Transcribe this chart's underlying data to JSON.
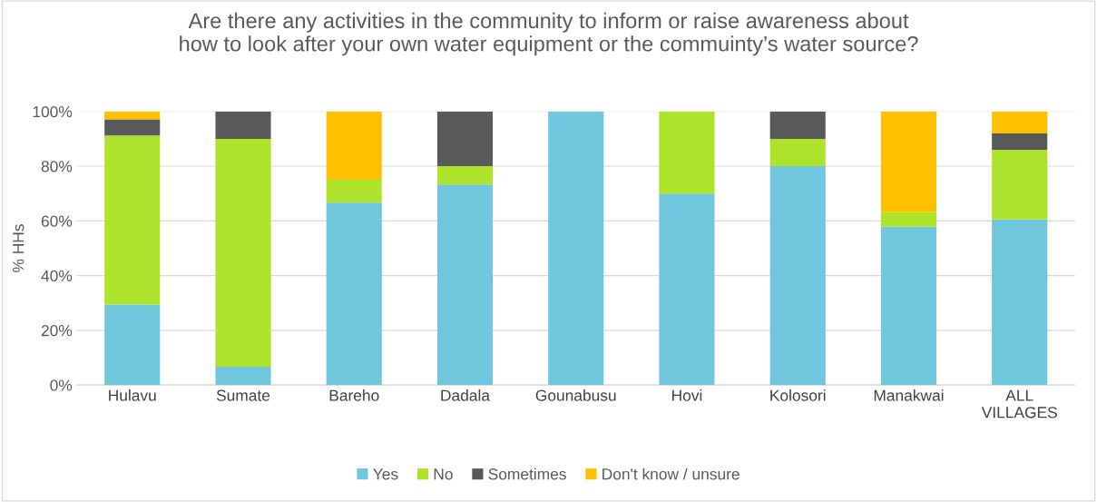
{
  "chart_data": {
    "type": "bar",
    "stacked": true,
    "title": "Are there any activities in the community to inform or raise awareness about\nhow to look after your own water equipment or the commuinty’s water source?",
    "ylabel": "% HHs",
    "categories": [
      "Hulavu",
      "Sumate",
      "Bareho",
      "Dadala",
      "Gounabusu",
      "Hovi",
      "Kolosori",
      "Manakwai",
      "ALL\nVILLAGES"
    ],
    "series": [
      {
        "name": "Yes",
        "color": "#70c6dd",
        "values": [
          29.4,
          6.7,
          66.7,
          73.3,
          100,
          70,
          80,
          57.9,
          60.5
        ]
      },
      {
        "name": "No",
        "color": "#aee32b",
        "values": [
          61.8,
          83.3,
          8.3,
          6.7,
          0,
          30,
          10,
          5.3,
          25.5
        ]
      },
      {
        "name": "Sometimes",
        "color": "#58595b",
        "values": [
          5.9,
          10,
          0,
          20,
          0,
          0,
          10,
          0,
          6
        ]
      },
      {
        "name": "Don't know / unsure",
        "color": "#ffc000",
        "values": [
          2.9,
          0,
          25,
          0,
          0,
          0,
          0,
          36.8,
          8
        ]
      }
    ],
    "ylim": [
      0,
      100
    ],
    "yticks": [
      {
        "value": 0,
        "label": "0%"
      },
      {
        "value": 20,
        "label": "20%"
      },
      {
        "value": 40,
        "label": "40%"
      },
      {
        "value": 60,
        "label": "60%"
      },
      {
        "value": 80,
        "label": "80%"
      },
      {
        "value": 100,
        "label": "100%"
      }
    ],
    "grid": "y",
    "legend": "bottom"
  }
}
